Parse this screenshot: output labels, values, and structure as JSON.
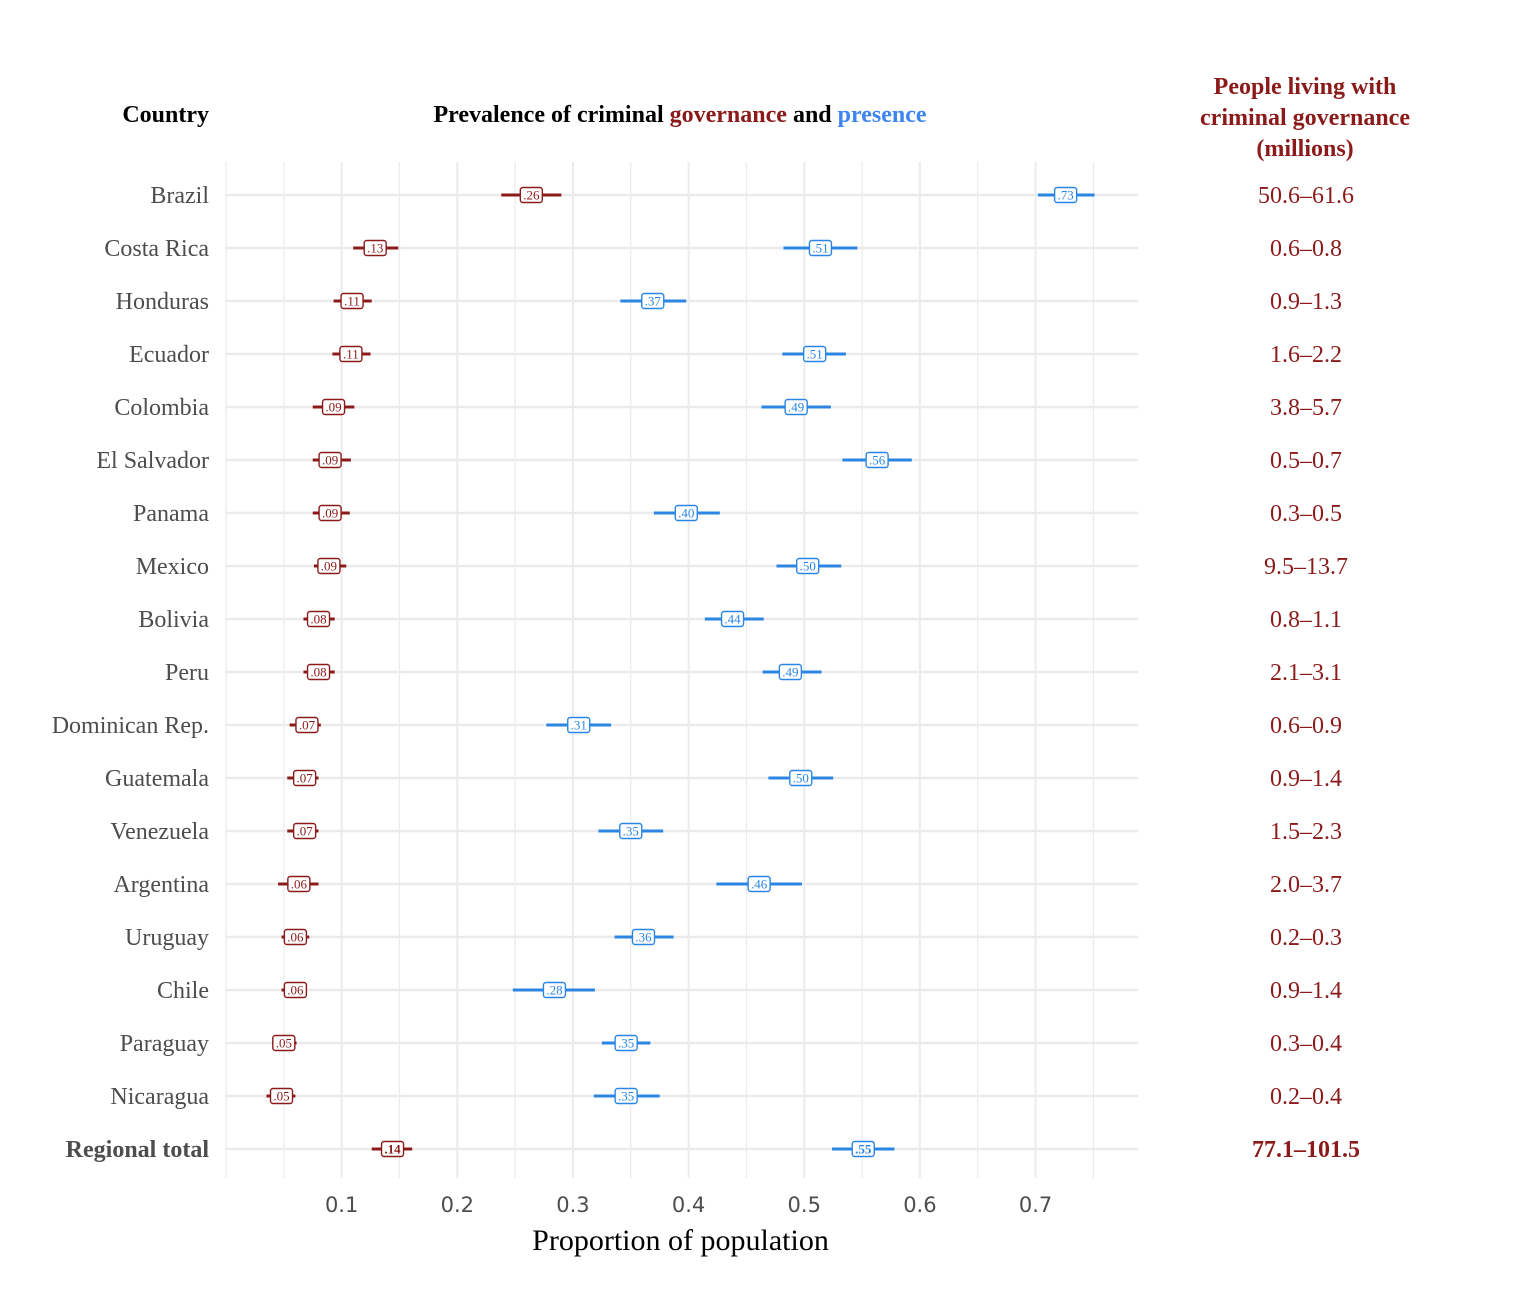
{
  "chart_data": {
    "type": "dot-interval",
    "header": {
      "country_label": "Country",
      "title_part1": "Prevalence of criminal ",
      "title_gov": "governance",
      "title_and": " and ",
      "title_pres": "presence",
      "right_header_line1": "People living with",
      "right_header_line2": "criminal governance",
      "right_header_line3": "(millions)"
    },
    "xlabel": "Proportion of population",
    "xlim": [
      0.0,
      0.8
    ],
    "x_ticks": [
      0.1,
      0.2,
      0.3,
      0.4,
      0.5,
      0.6,
      0.7
    ],
    "x_tick_labels": [
      "0.1",
      "0.2",
      "0.3",
      "0.4",
      "0.5",
      "0.6",
      "0.7"
    ],
    "grid": true,
    "colors": {
      "governance": "#8b1a1a",
      "presence": "#2b86e3",
      "grid": "#ebebeb",
      "axis_text": "#4d4d4d"
    },
    "rows": [
      {
        "country": "Brazil",
        "bold": false,
        "gov": 0.264,
        "gov_lo": 0.238,
        "gov_hi": 0.29,
        "gov_label": ".26",
        "pres": 0.726,
        "pres_lo": 0.702,
        "pres_hi": 0.751,
        "pres_label": ".73",
        "people": "50.6–61.6"
      },
      {
        "country": "Costa Rica",
        "bold": false,
        "gov": 0.129,
        "gov_lo": 0.11,
        "gov_hi": 0.149,
        "gov_label": ".13",
        "pres": 0.514,
        "pres_lo": 0.482,
        "pres_hi": 0.546,
        "pres_label": ".51",
        "people": "0.6–0.8"
      },
      {
        "country": "Honduras",
        "bold": false,
        "gov": 0.109,
        "gov_lo": 0.093,
        "gov_hi": 0.126,
        "gov_label": ".11",
        "pres": 0.369,
        "pres_lo": 0.341,
        "pres_hi": 0.398,
        "pres_label": ".37",
        "people": "0.9–1.3"
      },
      {
        "country": "Ecuador",
        "bold": false,
        "gov": 0.108,
        "gov_lo": 0.092,
        "gov_hi": 0.125,
        "gov_label": ".11",
        "pres": 0.509,
        "pres_lo": 0.481,
        "pres_hi": 0.536,
        "pres_label": ".51",
        "people": "1.6–2.2"
      },
      {
        "country": "Colombia",
        "bold": false,
        "gov": 0.093,
        "gov_lo": 0.075,
        "gov_hi": 0.111,
        "gov_label": ".09",
        "pres": 0.493,
        "pres_lo": 0.463,
        "pres_hi": 0.523,
        "pres_label": ".49",
        "people": "3.8–5.7"
      },
      {
        "country": "El Salvador",
        "bold": false,
        "gov": 0.09,
        "gov_lo": 0.075,
        "gov_hi": 0.108,
        "gov_label": ".09",
        "pres": 0.563,
        "pres_lo": 0.533,
        "pres_hi": 0.593,
        "pres_label": ".56",
        "people": "0.5–0.7"
      },
      {
        "country": "Panama",
        "bold": false,
        "gov": 0.09,
        "gov_lo": 0.075,
        "gov_hi": 0.107,
        "gov_label": ".09",
        "pres": 0.398,
        "pres_lo": 0.37,
        "pres_hi": 0.427,
        "pres_label": ".40",
        "people": "0.3–0.5"
      },
      {
        "country": "Mexico",
        "bold": false,
        "gov": 0.089,
        "gov_lo": 0.076,
        "gov_hi": 0.104,
        "gov_label": ".09",
        "pres": 0.503,
        "pres_lo": 0.476,
        "pres_hi": 0.532,
        "pres_label": ".50",
        "people": "9.5–13.7"
      },
      {
        "country": "Bolivia",
        "bold": false,
        "gov": 0.08,
        "gov_lo": 0.067,
        "gov_hi": 0.094,
        "gov_label": ".08",
        "pres": 0.438,
        "pres_lo": 0.414,
        "pres_hi": 0.465,
        "pres_label": ".44",
        "people": "0.8–1.1"
      },
      {
        "country": "Peru",
        "bold": false,
        "gov": 0.08,
        "gov_lo": 0.067,
        "gov_hi": 0.094,
        "gov_label": ".08",
        "pres": 0.488,
        "pres_lo": 0.464,
        "pres_hi": 0.515,
        "pres_label": ".49",
        "people": "2.1–3.1"
      },
      {
        "country": "Dominican Rep.",
        "bold": false,
        "gov": 0.07,
        "gov_lo": 0.055,
        "gov_hi": 0.082,
        "gov_label": ".07",
        "pres": 0.305,
        "pres_lo": 0.277,
        "pres_hi": 0.333,
        "pres_label": ".31",
        "people": "0.6–0.9"
      },
      {
        "country": "Guatemala",
        "bold": false,
        "gov": 0.068,
        "gov_lo": 0.053,
        "gov_hi": 0.08,
        "gov_label": ".07",
        "pres": 0.497,
        "pres_lo": 0.469,
        "pres_hi": 0.525,
        "pres_label": ".50",
        "people": "0.9–1.4"
      },
      {
        "country": "Venezuela",
        "bold": false,
        "gov": 0.068,
        "gov_lo": 0.053,
        "gov_hi": 0.08,
        "gov_label": ".07",
        "pres": 0.35,
        "pres_lo": 0.322,
        "pres_hi": 0.378,
        "pres_label": ".35",
        "people": "1.5–2.3"
      },
      {
        "country": "Argentina",
        "bold": false,
        "gov": 0.063,
        "gov_lo": 0.045,
        "gov_hi": 0.08,
        "gov_label": ".06",
        "pres": 0.461,
        "pres_lo": 0.424,
        "pres_hi": 0.498,
        "pres_label": ".46",
        "people": "2.0–3.7"
      },
      {
        "country": "Uruguay",
        "bold": false,
        "gov": 0.06,
        "gov_lo": 0.048,
        "gov_hi": 0.072,
        "gov_label": ".06",
        "pres": 0.361,
        "pres_lo": 0.336,
        "pres_hi": 0.387,
        "pres_label": ".36",
        "people": "0.2–0.3"
      },
      {
        "country": "Chile",
        "bold": false,
        "gov": 0.06,
        "gov_lo": 0.048,
        "gov_hi": 0.07,
        "gov_label": ".06",
        "pres": 0.284,
        "pres_lo": 0.248,
        "pres_hi": 0.319,
        "pres_label": ".28",
        "people": "0.9–1.4"
      },
      {
        "country": "Paraguay",
        "bold": false,
        "gov": 0.05,
        "gov_lo": 0.04,
        "gov_hi": 0.061,
        "gov_label": ".05",
        "pres": 0.346,
        "pres_lo": 0.325,
        "pres_hi": 0.367,
        "pres_label": ".35",
        "people": "0.3–0.4"
      },
      {
        "country": "Nicaragua",
        "bold": false,
        "gov": 0.048,
        "gov_lo": 0.035,
        "gov_hi": 0.06,
        "gov_label": ".05",
        "pres": 0.346,
        "pres_lo": 0.318,
        "pres_hi": 0.375,
        "pres_label": ".35",
        "people": "0.2–0.4"
      },
      {
        "country": "Regional total",
        "bold": true,
        "gov": 0.144,
        "gov_lo": 0.126,
        "gov_hi": 0.161,
        "gov_label": ".14",
        "pres": 0.551,
        "pres_lo": 0.524,
        "pres_hi": 0.578,
        "pres_label": ".55",
        "people": "77.1–101.5"
      }
    ]
  }
}
